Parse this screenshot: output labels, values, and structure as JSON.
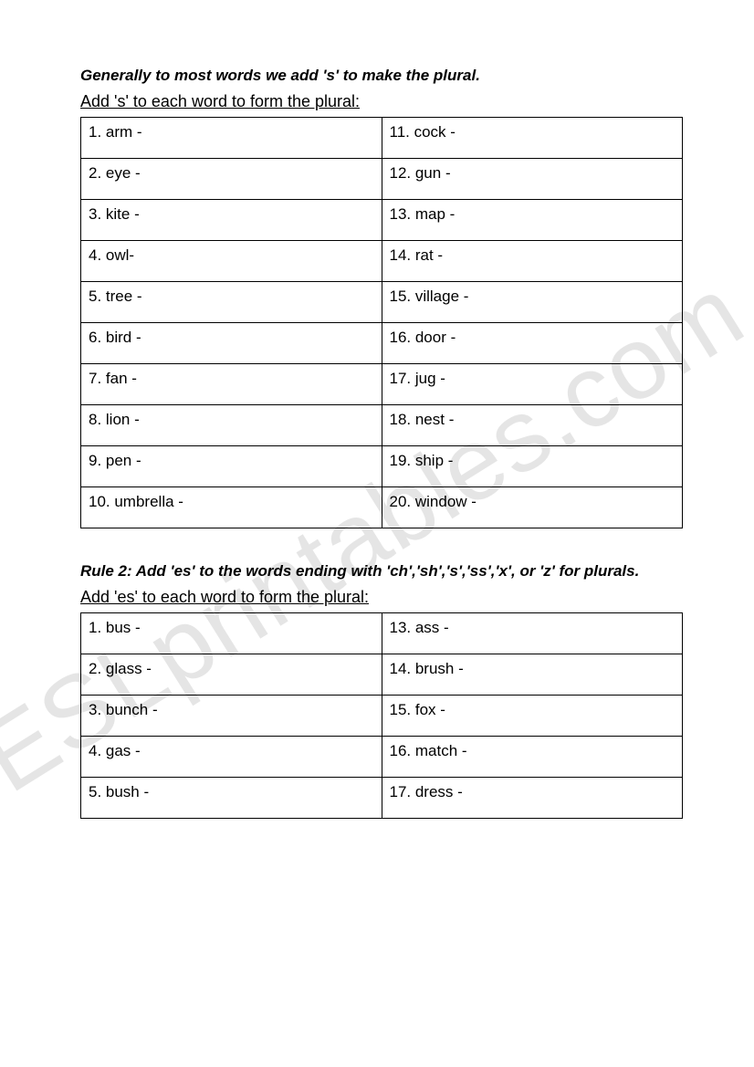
{
  "watermark": "ESLprintables.com",
  "section1": {
    "rule": "Generally to most words we add 's' to make the plural.",
    "instruction": "Add 's' to each word to form the plural:",
    "left": [
      "1. arm -",
      "2. eye -",
      "3. kite -",
      "4. owl-",
      "5. tree -",
      "6. bird -",
      "7. fan -",
      "8. lion -",
      "9. pen -",
      "10.  umbrella -"
    ],
    "right": [
      "11. cock -",
      "12. gun -",
      "13. map -",
      "14. rat -",
      "15. village -",
      "16. door -",
      "17. jug -",
      "18. nest -",
      "19. ship -",
      "20. window -"
    ]
  },
  "section2": {
    "rule": "Rule 2: Add 'es' to the words ending with 'ch','sh','s','ss','x', or 'z' for plurals.",
    "instruction": "Add 'es' to each word to form the plural:",
    "left": [
      "1. bus -",
      "2. glass -",
      "3. bunch -",
      "4. gas -",
      "5. bush -"
    ],
    "right": [
      "13. ass -",
      "14. brush -",
      "15. fox -",
      "16. match -",
      "17. dress -"
    ]
  }
}
